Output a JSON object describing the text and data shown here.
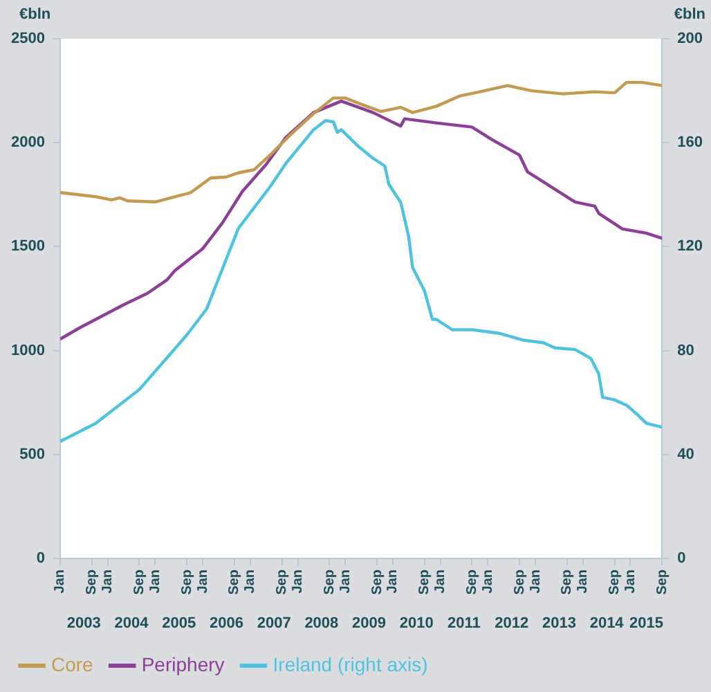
{
  "chart_data": {
    "type": "line",
    "ylabel": "€bln",
    "y2label": "€bln",
    "legend": "bottom",
    "grid": false,
    "marker": "none",
    "line_style": "solid",
    "xlim": [
      "2003-01",
      "2015-09"
    ],
    "xticks": [
      {
        "value": "2003-01",
        "label": "Jan"
      },
      {
        "value": "2003-09",
        "label": "Sep"
      },
      {
        "value": "2004-01",
        "label": "Jan"
      },
      {
        "value": "2004-09",
        "label": "Sep"
      },
      {
        "value": "2005-01",
        "label": "Jan"
      },
      {
        "value": "2005-09",
        "label": "Sep"
      },
      {
        "value": "2006-01",
        "label": "Jan"
      },
      {
        "value": "2006-09",
        "label": "Sep"
      },
      {
        "value": "2007-01",
        "label": "Jan"
      },
      {
        "value": "2007-09",
        "label": "Sep"
      },
      {
        "value": "2008-01",
        "label": "Jan"
      },
      {
        "value": "2008-09",
        "label": "Sep"
      },
      {
        "value": "2009-01",
        "label": "Jan"
      },
      {
        "value": "2009-09",
        "label": "Sep"
      },
      {
        "value": "2010-01",
        "label": "Jan"
      },
      {
        "value": "2010-09",
        "label": "Sep"
      },
      {
        "value": "2011-01",
        "label": "Jan"
      },
      {
        "value": "2011-09",
        "label": "Sep"
      },
      {
        "value": "2012-01",
        "label": "Jan"
      },
      {
        "value": "2012-09",
        "label": "Sep"
      },
      {
        "value": "2013-01",
        "label": "Jan"
      },
      {
        "value": "2013-09",
        "label": "Sep"
      },
      {
        "value": "2014-01",
        "label": "Jan"
      },
      {
        "value": "2014-09",
        "label": "Sep"
      },
      {
        "value": "2015-01",
        "label": "Jan"
      },
      {
        "value": "2015-09",
        "label": "Sep"
      }
    ],
    "x2lim": [
      "2003-01",
      "2015-09"
    ],
    "x2ticks": [
      {
        "value": "2003-07",
        "label": "2003"
      },
      {
        "value": "2004-07",
        "label": "2004"
      },
      {
        "value": "2005-07",
        "label": "2005"
      },
      {
        "value": "2006-07",
        "label": "2006"
      },
      {
        "value": "2007-07",
        "label": "2007"
      },
      {
        "value": "2008-07",
        "label": "2008"
      },
      {
        "value": "2009-07",
        "label": "2009"
      },
      {
        "value": "2010-07",
        "label": "2010"
      },
      {
        "value": "2011-07",
        "label": "2011"
      },
      {
        "value": "2012-07",
        "label": "2012"
      },
      {
        "value": "2013-07",
        "label": "2013"
      },
      {
        "value": "2014-07",
        "label": "2014"
      },
      {
        "value": "2015-05",
        "label": "2015"
      }
    ],
    "ylim": [
      0,
      2500
    ],
    "yticks": [
      0,
      500,
      1000,
      1500,
      2000,
      2500
    ],
    "y2lim": [
      0,
      200
    ],
    "y2ticks": [
      0,
      40,
      80,
      120,
      160,
      200
    ],
    "series": [
      {
        "name": "Core",
        "color": "#c49a50",
        "x": [
          "2003-01",
          "2003-10",
          "2004-02",
          "2004-04",
          "2004-06",
          "2005-01",
          "2005-06",
          "2005-10",
          "2006-03",
          "2006-07",
          "2006-10",
          "2007-02",
          "2007-06",
          "2007-11",
          "2008-05",
          "2008-10",
          "2009-01",
          "2009-05",
          "2009-10",
          "2010-03",
          "2010-06",
          "2010-12",
          "2011-06",
          "2011-11",
          "2012-06",
          "2012-12",
          "2013-08",
          "2014-04",
          "2014-09",
          "2014-12",
          "2015-04",
          "2015-09"
        ],
        "values": [
          1760,
          1740,
          1725,
          1735,
          1720,
          1715,
          1740,
          1760,
          1830,
          1835,
          1855,
          1870,
          1940,
          2035,
          2140,
          2215,
          2215,
          2185,
          2150,
          2170,
          2145,
          2175,
          2225,
          2245,
          2275,
          2250,
          2235,
          2245,
          2240,
          2290,
          2290,
          2275
        ]
      },
      {
        "name": "Periphery",
        "color": "#8b3f96",
        "x": [
          "2003-01",
          "2003-06",
          "2003-11",
          "2004-05",
          "2004-11",
          "2005-04",
          "2005-06",
          "2006-01",
          "2006-06",
          "2006-11",
          "2007-05",
          "2007-10",
          "2008-05",
          "2008-12",
          "2009-08",
          "2010-03",
          "2010-04",
          "2010-12",
          "2011-09",
          "2012-02",
          "2012-09",
          "2012-11",
          "2013-11",
          "2014-04",
          "2014-05",
          "2014-11",
          "2015-05",
          "2015-09"
        ],
        "values": [
          1055,
          1110,
          1160,
          1220,
          1275,
          1340,
          1385,
          1490,
          1615,
          1765,
          1895,
          2025,
          2145,
          2200,
          2145,
          2080,
          2115,
          2095,
          2075,
          2015,
          1940,
          1860,
          1715,
          1695,
          1660,
          1585,
          1565,
          1540
        ]
      },
      {
        "name": "Ireland (right axis)",
        "color": "#4ec3e0",
        "axis": "y2",
        "x": [
          "2003-01",
          "2003-10",
          "2004-09",
          "2005-09",
          "2006-02",
          "2006-10",
          "2007-06",
          "2007-10",
          "2008-05",
          "2008-08",
          "2008-10",
          "2008-11",
          "2008-12",
          "2009-04",
          "2009-08",
          "2009-11",
          "2009-12",
          "2010-03",
          "2010-05",
          "2010-06",
          "2010-09",
          "2010-11",
          "2010-12",
          "2011-04",
          "2011-09",
          "2012-04",
          "2012-10",
          "2013-03",
          "2013-06",
          "2013-11",
          "2014-03",
          "2014-05",
          "2014-06",
          "2014-09",
          "2014-12",
          "2015-03",
          "2015-05",
          "2015-09"
        ],
        "values": [
          45,
          52,
          65,
          86,
          96,
          127,
          143,
          152,
          165,
          168.5,
          168,
          164,
          165,
          159,
          154,
          151,
          144,
          137,
          124,
          112,
          103,
          92,
          92,
          88,
          88,
          86.6,
          84,
          83,
          81,
          80.4,
          77,
          71,
          62,
          61,
          59,
          55,
          52,
          50.5
        ]
      }
    ]
  }
}
